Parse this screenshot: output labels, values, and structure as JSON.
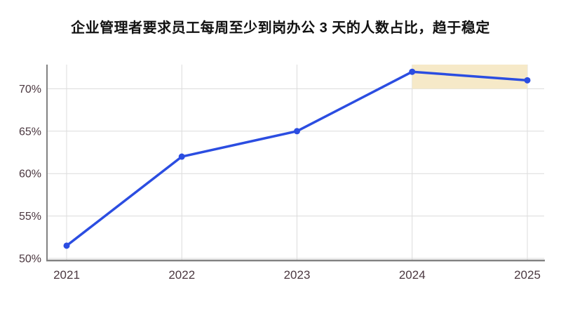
{
  "chart_data": {
    "type": "line",
    "title": "企业管理者要求员工每周至少到岗办公 3 天的人数占比，趋于稳定",
    "x": [
      2021,
      2022,
      2023,
      2024,
      2025
    ],
    "xtick_labels": [
      "2021",
      "2022",
      "2023",
      "2024",
      "2025"
    ],
    "values": [
      51.5,
      62,
      65,
      72,
      71
    ],
    "unit": "%",
    "yticks": [
      50,
      55,
      60,
      65,
      70
    ],
    "ytick_labels": [
      "50%",
      "55%",
      "60%",
      "65%",
      "70%"
    ],
    "ylim": [
      49.7,
      72.9
    ],
    "grid": true,
    "legend": "none",
    "annotations": [
      {
        "type": "highlight-band",
        "x_from": 2024,
        "x_to": 2025,
        "y_from": 70,
        "y_to": "plot-top",
        "meaning": "趋于稳定"
      }
    ],
    "colors": {
      "line": "#2b4de1",
      "point": "#2b4de1",
      "highlight": "#f6e9c8",
      "grid": "#dcdcdc",
      "axis": "#828282",
      "tick_text": "#4b3840",
      "title_text": "#111111",
      "background": "#ffffff"
    }
  }
}
